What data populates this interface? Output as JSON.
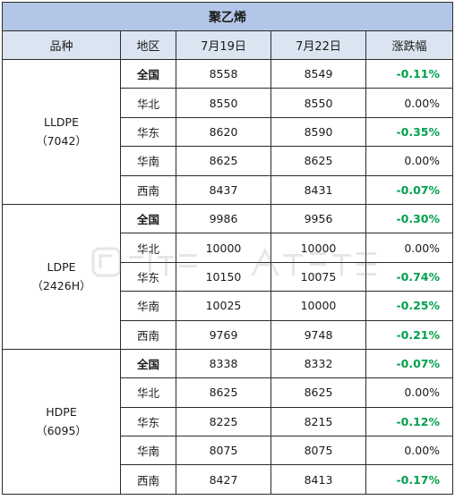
{
  "table": {
    "title": "聚乙烯",
    "headers": [
      "品种",
      "地区",
      "7月19日",
      "7月22日",
      "涨跌幅"
    ],
    "groups": [
      {
        "product_line1": "LLDPE",
        "product_line2": "（7042）",
        "rows": [
          {
            "region": "全国",
            "bold": true,
            "d19": "8558",
            "d22": "8549",
            "change": "-0.11%",
            "negative": true
          },
          {
            "region": "华北",
            "bold": false,
            "d19": "8550",
            "d22": "8550",
            "change": "0.00%",
            "negative": false
          },
          {
            "region": "华东",
            "bold": false,
            "d19": "8620",
            "d22": "8590",
            "change": "-0.35%",
            "negative": true
          },
          {
            "region": "华南",
            "bold": false,
            "d19": "8625",
            "d22": "8625",
            "change": "0.00%",
            "negative": false
          },
          {
            "region": "西南",
            "bold": false,
            "d19": "8437",
            "d22": "8431",
            "change": "-0.07%",
            "negative": true
          }
        ]
      },
      {
        "product_line1": "LDPE",
        "product_line2": "（2426H）",
        "rows": [
          {
            "region": "全国",
            "bold": true,
            "d19": "9986",
            "d22": "9956",
            "change": "-0.30%",
            "negative": true
          },
          {
            "region": "华北",
            "bold": false,
            "d19": "10000",
            "d22": "10000",
            "change": "0.00%",
            "negative": false
          },
          {
            "region": "华东",
            "bold": false,
            "d19": "10150",
            "d22": "10075",
            "change": "-0.74%",
            "negative": true
          },
          {
            "region": "华南",
            "bold": false,
            "d19": "10025",
            "d22": "10000",
            "change": "-0.25%",
            "negative": true
          },
          {
            "region": "西南",
            "bold": false,
            "d19": "9769",
            "d22": "9748",
            "change": "-0.21%",
            "negative": true
          }
        ]
      },
      {
        "product_line1": "HDPE",
        "product_line2": "（6095）",
        "rows": [
          {
            "region": "全国",
            "bold": true,
            "d19": "8338",
            "d22": "8332",
            "change": "-0.07%",
            "negative": true
          },
          {
            "region": "华北",
            "bold": false,
            "d19": "8625",
            "d22": "8625",
            "change": "0.00%",
            "negative": false
          },
          {
            "region": "华东",
            "bold": false,
            "d19": "8225",
            "d22": "8215",
            "change": "-0.12%",
            "negative": true
          },
          {
            "region": "华南",
            "bold": false,
            "d19": "8075",
            "d22": "8075",
            "change": "0.00%",
            "negative": false
          },
          {
            "region": "西南",
            "bold": false,
            "d19": "8427",
            "d22": "8413",
            "change": "-0.17%",
            "negative": true
          }
        ]
      }
    ]
  },
  "colors": {
    "title_bg": "#b4c6e7",
    "header_bg": "#dbe5f1",
    "negative_change": "#00a04b",
    "border": "#2b2b2b"
  },
  "watermark": {
    "icon": "watermark-logo-icon"
  }
}
